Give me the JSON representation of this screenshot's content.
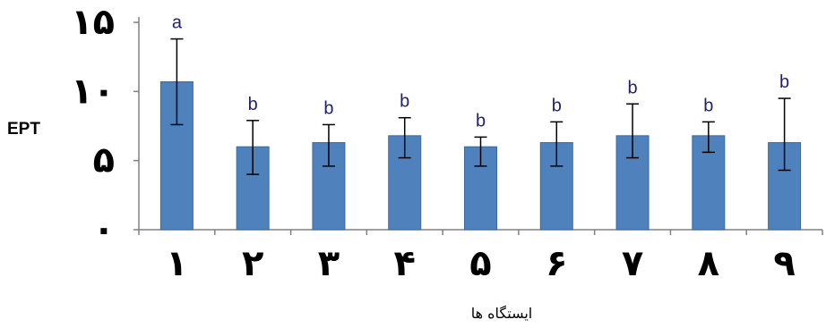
{
  "chart_data": {
    "type": "bar",
    "categories": [
      "۱",
      "۲",
      "۳",
      "۴",
      "۵",
      "۶",
      "۷",
      "۸",
      "۹"
    ],
    "values": [
      10.7,
      6.0,
      6.3,
      6.8,
      6.0,
      6.3,
      6.8,
      6.8,
      6.3
    ],
    "error_low": [
      7.6,
      4.0,
      4.6,
      5.2,
      4.6,
      4.6,
      5.2,
      5.6,
      4.3
    ],
    "error_high": [
      13.8,
      7.9,
      7.6,
      8.1,
      6.7,
      7.8,
      9.1,
      7.8,
      9.5
    ],
    "significance_labels": [
      "a",
      "b",
      "b",
      "b",
      "b",
      "b",
      "b",
      "b",
      "b"
    ],
    "ylabel": "EPT",
    "xlabel": "ایستگاه ها",
    "ylim": [
      0,
      15
    ],
    "yticks": [
      0,
      5,
      10,
      15
    ],
    "ytick_labels": [
      "۰",
      "۵",
      "۱۰",
      "۱۵"
    ],
    "grid": false,
    "colors": {
      "bar": "#4f81bd",
      "bar_stroke": "#3a6aa3",
      "axis": "#808080",
      "error_bar": "#000000",
      "significance": "#1f1f6e"
    }
  }
}
